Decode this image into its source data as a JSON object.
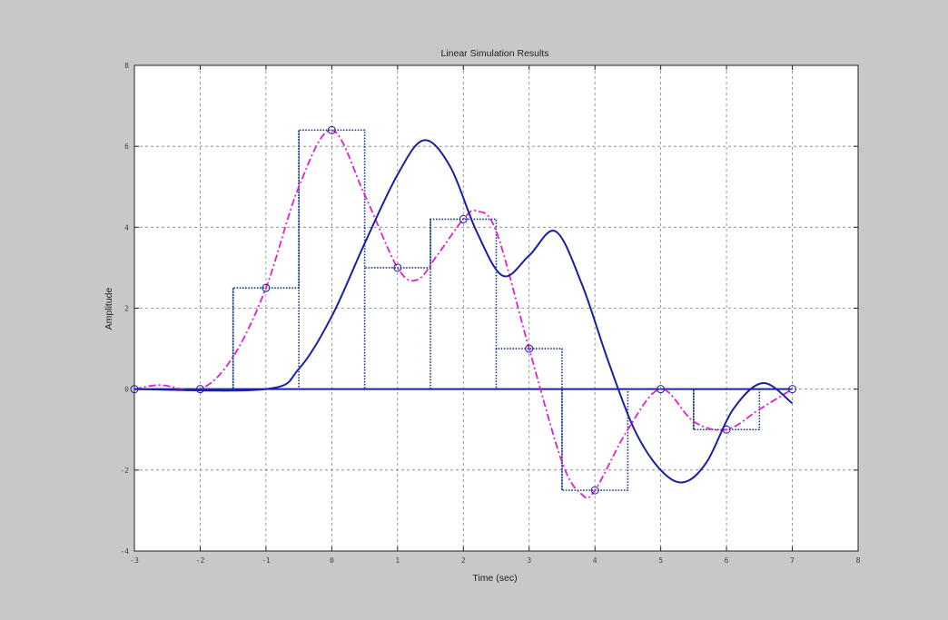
{
  "chart_data": {
    "type": "line",
    "title": "Linear Simulation Results",
    "xlabel": "Time (sec)",
    "ylabel": "Amplitude",
    "xlim": [
      -3,
      8
    ],
    "ylim": [
      -4,
      8
    ],
    "xticks": [
      "-3",
      "-2",
      "-1",
      "0",
      "1",
      "2",
      "3",
      "4",
      "5",
      "6",
      "7",
      "8"
    ],
    "yticks": [
      "-4",
      "-2",
      "0",
      "2",
      "4",
      "6",
      "8"
    ],
    "grid": true,
    "colors": {
      "response": "#1a1fa3",
      "input_stairs": "#1a3a8a",
      "interpolated": "#e020d0",
      "markers": "#1a1fa3",
      "grid": "#808080",
      "axes_bg": "#ffffff",
      "figure_bg": "#c8c8c8"
    },
    "sample_points": {
      "x": [
        -3,
        -2,
        -1,
        0,
        1,
        2,
        3,
        4,
        5,
        6,
        7
      ],
      "y": [
        0,
        0,
        2.5,
        6.4,
        3.0,
        4.2,
        1.0,
        -2.5,
        0,
        -1.0,
        0
      ]
    },
    "series": [
      {
        "style": "dotted-staircase",
        "x": [
          -3,
          -1.5,
          -1.5,
          -0.5,
          -0.5,
          0.5,
          0.5,
          1.5,
          1.5,
          2.5,
          2.5,
          3.5,
          3.5,
          4.5,
          4.5,
          5.5,
          5.5,
          6.5,
          6.5,
          7
        ],
        "y": [
          0,
          0,
          2.5,
          2.5,
          6.4,
          6.4,
          3.0,
          3.0,
          4.2,
          4.2,
          1.0,
          1.0,
          -2.5,
          -2.5,
          0,
          0,
          -1.0,
          -1.0,
          0,
          0
        ]
      },
      {
        "style": "dash-dot",
        "x": [
          -3,
          -2.6,
          -2,
          -1.5,
          -1,
          -0.5,
          0,
          0.5,
          1,
          1.3,
          1.6,
          2,
          2.2,
          2.5,
          3,
          3.5,
          3.8,
          4,
          4.5,
          5,
          5.5,
          6,
          6.5,
          7
        ],
        "y": [
          0,
          0.1,
          0,
          0.8,
          2.5,
          5.0,
          6.4,
          4.8,
          3.0,
          2.7,
          3.3,
          4.2,
          4.4,
          3.9,
          1.0,
          -1.8,
          -2.6,
          -2.5,
          -1.0,
          0,
          -0.8,
          -1.0,
          -0.5,
          0
        ]
      },
      {
        "style": "solid",
        "x": [
          -3,
          -1,
          -0.5,
          0,
          0.5,
          1,
          1.4,
          1.8,
          2.2,
          2.6,
          3,
          3.4,
          3.8,
          4.2,
          4.6,
          5,
          5.35,
          5.7,
          6.1,
          6.55,
          7
        ],
        "y": [
          0,
          0,
          0.5,
          1.8,
          3.6,
          5.3,
          6.15,
          5.5,
          3.9,
          2.8,
          3.3,
          3.9,
          2.6,
          0.7,
          -1.0,
          -2.0,
          -2.3,
          -1.8,
          -0.5,
          0.15,
          -0.35
        ]
      }
    ]
  }
}
